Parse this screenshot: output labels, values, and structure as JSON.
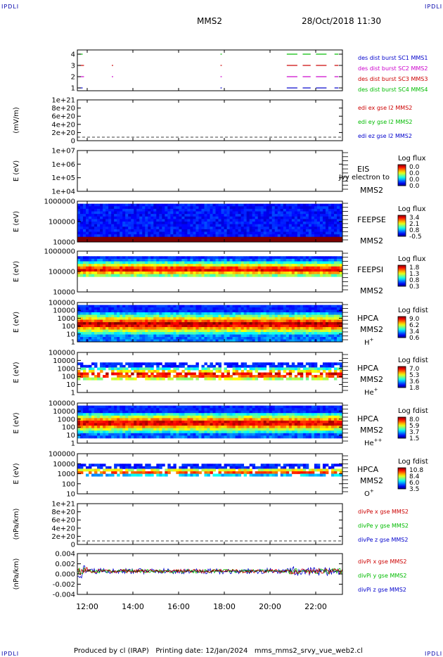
{
  "corners": {
    "tl": "IPDLI",
    "tr": "IPDLI",
    "bl": "IPDLI",
    "br": "IPDLI"
  },
  "header": {
    "title": "MMS2",
    "date": "28/Oct/2018 11:30"
  },
  "footer": "Produced by cl (IRAP)   Printing date: 12/Jan/2024   mms_mms2_srvy_vue_web2.cl",
  "chart_data": [
    {
      "type": "scatter",
      "id": "burst",
      "ylabel": "",
      "yticks": [
        "4",
        "3",
        "2",
        "1"
      ],
      "legend": [
        {
          "text": "des dist burst SC1 MMS1",
          "color": "#0000cc"
        },
        {
          "text": "des dist burst SC2 MMS2",
          "color": "#cc00cc"
        },
        {
          "text": "des dist burst SC3 MMS3",
          "color": "#cc0000"
        },
        {
          "text": "des dist burst SC4 MMS4",
          "color": "#00bb00"
        }
      ]
    },
    {
      "type": "line",
      "id": "edi",
      "ylabel": "(mV/m)",
      "yticks": [
        "1e+21",
        "8e+20",
        "6e+20",
        "4e+20",
        "2e+20",
        "0"
      ],
      "legend": [
        {
          "text": "edi ex gse l2 MMS2",
          "color": "#cc0000"
        },
        {
          "text": "edi ey gse l2 MMS2",
          "color": "#00bb00"
        },
        {
          "text": "edi ez gse l2 MMS2",
          "color": "#0000cc"
        }
      ]
    },
    {
      "type": "heatmap",
      "id": "eis",
      "ylabel": "E (eV)",
      "yticks": [
        "1e+07",
        "1e+06",
        "1e+05",
        "1e+04"
      ],
      "name1": "EIS",
      "name2": "MMS2",
      "overlay": "Jvy electron to",
      "cbar_title": "Log flux",
      "cbar_ticks": [
        "0.0",
        "0.0",
        "0.0",
        "0.0"
      ]
    },
    {
      "type": "heatmap",
      "id": "feepse",
      "ylabel": "E (eV)",
      "yticks": [
        "1000000",
        "100000",
        "10000"
      ],
      "name1": "FEEPSE",
      "name2": "MMS2",
      "cbar_title": "Log flux",
      "cbar_ticks": [
        "3.4",
        "2.1",
        "0.8",
        "-0.5"
      ]
    },
    {
      "type": "heatmap",
      "id": "feepsi",
      "ylabel": "E (eV)",
      "yticks": [
        "1000000",
        "100000",
        "10000"
      ],
      "name1": "FEEPSI",
      "name2": "MMS2",
      "cbar_title": "Log flux",
      "cbar_ticks": [
        "1.8",
        "1.3",
        "0.8",
        "0.3"
      ]
    },
    {
      "type": "heatmap",
      "id": "hpca_h",
      "ylabel": "E (eV)",
      "yticks": [
        "100000",
        "10000",
        "1000",
        "100",
        "10",
        "1"
      ],
      "name1": "HPCA",
      "name2": "MMS2",
      "species": "H",
      "species_sup": "+",
      "cbar_title": "Log fdist",
      "cbar_ticks": [
        "9.0",
        "6.2",
        "3.4",
        "0.6"
      ]
    },
    {
      "type": "heatmap",
      "id": "hpca_he",
      "ylabel": "E (eV)",
      "yticks": [
        "100000",
        "10000",
        "1000",
        "100",
        "10",
        "1"
      ],
      "name1": "HPCA",
      "name2": "MMS2",
      "species": "He",
      "species_sup": "+",
      "cbar_title": "Log fdist",
      "cbar_ticks": [
        "7.0",
        "5.3",
        "3.6",
        "1.8"
      ]
    },
    {
      "type": "heatmap",
      "id": "hpca_hepp",
      "ylabel": "E (eV)",
      "yticks": [
        "100000",
        "10000",
        "1000",
        "100",
        "10",
        "1"
      ],
      "name1": "HPCA",
      "name2": "MMS2",
      "species": "He",
      "species_sup": "++",
      "cbar_title": "Log fdist",
      "cbar_ticks": [
        "8.0",
        "5.9",
        "3.7",
        "1.5"
      ]
    },
    {
      "type": "heatmap",
      "id": "hpca_o",
      "ylabel": "E (eV)",
      "yticks": [
        "100000",
        "10000",
        "1000",
        "100",
        "10"
      ],
      "name1": "HPCA",
      "name2": "MMS2",
      "species": "O",
      "species_sup": "+",
      "cbar_title": "Log fdist",
      "cbar_ticks": [
        "10.8",
        "8.4",
        "6.0",
        "3.5"
      ]
    },
    {
      "type": "line",
      "id": "divpe",
      "ylabel": "(nPa/km)",
      "yticks": [
        "1e+21",
        "8e+20",
        "6e+20",
        "4e+20",
        "2e+20",
        "0"
      ],
      "legend": [
        {
          "text": "divPe x gse MMS2",
          "color": "#cc0000"
        },
        {
          "text": "divPe y gse MMS2",
          "color": "#00bb00"
        },
        {
          "text": "divPe z gse MMS2",
          "color": "#0000cc"
        }
      ]
    },
    {
      "type": "line",
      "id": "divpi",
      "ylabel": "(nPa/km)",
      "yticks": [
        "0.004",
        "0.002",
        "0.000",
        "-0.002",
        "-0.004"
      ],
      "legend": [
        {
          "text": "divPi x gse MMS2",
          "color": "#cc0000"
        },
        {
          "text": "divPi y gse MMS2",
          "color": "#00bb00"
        },
        {
          "text": "divPi z gse MMS2",
          "color": "#0000cc"
        }
      ]
    }
  ],
  "xaxis": {
    "ticks": [
      "12:00",
      "14:00",
      "16:00",
      "18:00",
      "20:00",
      "22:00"
    ]
  }
}
